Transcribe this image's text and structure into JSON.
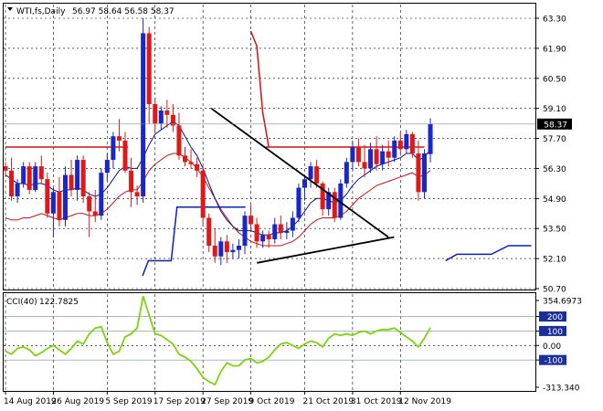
{
  "header": {
    "symbol_label": "WTI,fs,Daily",
    "ohlc_label": "56.97 58.64 56.58 58.37"
  },
  "cci_header": {
    "label": "CCI(40)",
    "value": "122.7825"
  },
  "price_tag": "58.37",
  "colors": {
    "bull": "#1a27c8",
    "bear": "#e01818",
    "cci": "#7ad60a",
    "ma_fast": "#0a1290",
    "ma_slow": "#d41010",
    "trend": "#000000",
    "pivot": "#d41010",
    "stop": "#0a20c0",
    "grid": "#000000",
    "frame": "#000000",
    "tag_bg": "#000000",
    "tag_fg": "#ffffff"
  },
  "chart_data": [
    {
      "type": "candlestick",
      "title": "WTI,fs,Daily",
      "y_ticks": [
        "63.30",
        "61.90",
        "60.50",
        "59.10",
        "57.70",
        "56.30",
        "54.90",
        "53.50",
        "52.10",
        "50.70"
      ],
      "ylim": [
        50.7,
        63.3
      ],
      "x_ticks": [
        "14 Aug 2019",
        "26 Aug 2019",
        "5 Sep 2019",
        "17 Sep 2019",
        "27 Sep 2019",
        "9 Oct 2019",
        "21 Oct 2019",
        "31 Oct 2019",
        "12 Nov 2019"
      ],
      "last_price": 58.37,
      "candles": [
        [
          56.4,
          56.6,
          55.9,
          56.2
        ],
        [
          56.2,
          56.8,
          54.8,
          55.0
        ],
        [
          55.0,
          55.8,
          54.7,
          55.6
        ],
        [
          55.6,
          56.6,
          55.4,
          56.4
        ],
        [
          56.4,
          56.6,
          55.1,
          55.3
        ],
        [
          55.3,
          56.6,
          55.2,
          56.4
        ],
        [
          56.4,
          56.9,
          55.6,
          55.8
        ],
        [
          55.8,
          56.1,
          54.0,
          54.2
        ],
        [
          54.2,
          55.4,
          53.1,
          55.2
        ],
        [
          55.2,
          55.9,
          53.6,
          53.9
        ],
        [
          53.9,
          56.4,
          53.6,
          56.0
        ],
        [
          56.0,
          56.7,
          55.0,
          55.3
        ],
        [
          55.3,
          56.9,
          54.8,
          56.7
        ],
        [
          56.7,
          56.9,
          54.7,
          55.0
        ],
        [
          55.0,
          55.2,
          53.1,
          54.3
        ],
        [
          54.3,
          55.3,
          53.8,
          54.1
        ],
        [
          54.1,
          56.3,
          53.9,
          56.1
        ],
        [
          56.1,
          57.0,
          55.7,
          56.7
        ],
        [
          56.7,
          58.0,
          56.3,
          57.8
        ],
        [
          57.8,
          58.6,
          57.1,
          57.6
        ],
        [
          57.6,
          58.0,
          56.1,
          56.2
        ],
        [
          56.2,
          56.8,
          54.5,
          55.2
        ],
        [
          55.2,
          55.5,
          54.6,
          55.0
        ],
        [
          55.0,
          63.3,
          54.7,
          62.6
        ],
        [
          62.6,
          62.9,
          58.4,
          59.3
        ],
        [
          59.3,
          59.6,
          58.0,
          58.4
        ],
        [
          58.4,
          59.2,
          58.1,
          59.0
        ],
        [
          59.0,
          59.5,
          58.2,
          58.8
        ],
        [
          58.8,
          59.3,
          58.0,
          58.3
        ],
        [
          58.3,
          58.9,
          56.7,
          56.9
        ],
        [
          56.9,
          57.3,
          56.4,
          56.6
        ],
        [
          56.6,
          57.2,
          56.3,
          56.5
        ],
        [
          56.5,
          56.8,
          55.9,
          56.2
        ],
        [
          56.2,
          56.4,
          53.6,
          54.0
        ],
        [
          54.0,
          54.2,
          52.4,
          52.7
        ],
        [
          52.7,
          53.5,
          51.9,
          52.2
        ],
        [
          52.2,
          53.1,
          51.8,
          52.9
        ],
        [
          52.9,
          53.2,
          51.9,
          52.4
        ],
        [
          52.4,
          52.8,
          52.1,
          52.5
        ],
        [
          52.5,
          53.0,
          52.1,
          52.7
        ],
        [
          52.7,
          54.3,
          52.3,
          54.1
        ],
        [
          54.1,
          54.6,
          53.4,
          53.7
        ],
        [
          53.7,
          54.0,
          52.6,
          52.9
        ],
        [
          52.9,
          53.4,
          52.6,
          53.2
        ],
        [
          53.2,
          53.4,
          52.6,
          53.0
        ],
        [
          53.0,
          54.0,
          52.8,
          53.7
        ],
        [
          53.7,
          54.1,
          53.0,
          53.3
        ],
        [
          53.3,
          53.8,
          53.0,
          53.4
        ],
        [
          53.4,
          54.3,
          53.1,
          54.0
        ],
        [
          54.0,
          55.6,
          53.8,
          55.4
        ],
        [
          55.4,
          56.0,
          54.8,
          55.8
        ],
        [
          55.8,
          56.6,
          55.4,
          56.4
        ],
        [
          56.4,
          56.7,
          55.4,
          55.6
        ],
        [
          55.6,
          55.7,
          54.1,
          54.4
        ],
        [
          54.4,
          55.4,
          54.1,
          55.2
        ],
        [
          55.2,
          55.4,
          53.8,
          54.0
        ],
        [
          54.0,
          55.8,
          53.9,
          55.6
        ],
        [
          55.6,
          56.8,
          55.4,
          56.6
        ],
        [
          56.6,
          57.6,
          56.2,
          57.3
        ],
        [
          57.3,
          57.7,
          56.4,
          56.6
        ],
        [
          56.6,
          57.4,
          55.9,
          56.3
        ],
        [
          56.3,
          57.5,
          56.1,
          57.2
        ],
        [
          57.2,
          57.8,
          56.2,
          56.5
        ],
        [
          56.5,
          57.4,
          56.2,
          57.1
        ],
        [
          57.1,
          57.6,
          56.4,
          56.8
        ],
        [
          56.8,
          57.8,
          56.6,
          57.6
        ],
        [
          57.6,
          58.0,
          56.9,
          57.2
        ],
        [
          57.2,
          58.1,
          57.0,
          57.9
        ],
        [
          57.9,
          58.0,
          56.8,
          57.0
        ],
        [
          57.0,
          57.6,
          54.8,
          55.2
        ],
        [
          55.2,
          57.2,
          54.9,
          57.0
        ],
        [
          56.97,
          58.64,
          56.58,
          58.37
        ]
      ],
      "ma_fast": [
        56.0,
        55.8,
        55.6,
        55.6,
        55.5,
        55.6,
        55.6,
        55.5,
        55.3,
        55.2,
        55.3,
        55.3,
        55.4,
        55.3,
        55.1,
        55.0,
        55.1,
        55.4,
        55.8,
        56.2,
        56.4,
        56.3,
        56.3,
        56.8,
        57.4,
        57.9,
        58.1,
        58.3,
        58.5,
        58.3,
        57.8,
        57.3,
        56.9,
        56.3,
        55.6,
        54.9,
        54.3,
        53.9,
        53.6,
        53.4,
        53.4,
        53.4,
        53.3,
        53.2,
        53.2,
        53.3,
        53.3,
        53.4,
        53.6,
        53.9,
        54.3,
        54.7,
        54.9,
        54.9,
        54.8,
        54.7,
        54.8,
        55.1,
        55.5,
        55.8,
        56.0,
        56.2,
        56.4,
        56.5,
        56.6,
        56.7,
        56.8,
        57.0,
        57.0,
        56.7,
        56.8,
        57.2
      ],
      "ma_slow": [
        54.0,
        53.9,
        53.9,
        54.0,
        54.0,
        54.1,
        54.2,
        54.1,
        54.0,
        53.9,
        54.0,
        54.1,
        54.2,
        54.2,
        54.1,
        54.1,
        54.2,
        54.4,
        54.7,
        55.0,
        55.2,
        55.3,
        55.3,
        55.7,
        56.2,
        56.5,
        56.7,
        56.9,
        57.0,
        57.0,
        56.8,
        56.6,
        56.3,
        55.9,
        55.4,
        54.9,
        54.4,
        54.0,
        53.6,
        53.3,
        53.1,
        52.9,
        52.8,
        52.7,
        52.7,
        52.7,
        52.7,
        52.8,
        52.9,
        53.1,
        53.4,
        53.7,
        53.9,
        54.0,
        54.0,
        54.0,
        54.1,
        54.3,
        54.6,
        54.9,
        55.1,
        55.3,
        55.5,
        55.6,
        55.7,
        55.8,
        55.9,
        56.0,
        56.1,
        55.9,
        56.0,
        56.2
      ],
      "pivot_segments": [
        {
          "from": 0,
          "to": 19,
          "y": 57.3
        },
        {
          "from": 36,
          "to": 66,
          "y": 57.3
        },
        {
          "from": 38,
          "to": 38,
          "y": 57.3
        }
      ],
      "pivot_drop": [
        [
          44,
          62.7
        ],
        [
          45,
          62.0
        ],
        [
          46,
          58.9
        ],
        [
          47,
          57.3
        ]
      ],
      "stop_steps": [
        [
          [
            24,
            51.3
          ],
          [
            25,
            52.0
          ],
          [
            29,
            52.0
          ],
          [
            30,
            54.5
          ],
          [
            42,
            54.5
          ]
        ],
        [
          [
            77,
            52.0
          ],
          [
            79,
            52.3
          ],
          [
            85,
            52.3
          ],
          [
            88,
            52.7
          ],
          [
            92,
            52.7
          ]
        ]
      ],
      "trendlines": [
        {
          "from": [
            36,
            59.1
          ],
          "to": [
            67,
            53.1
          ]
        },
        {
          "from": [
            44,
            51.9
          ],
          "to": [
            68,
            53.1
          ]
        }
      ]
    },
    {
      "type": "line",
      "title": "CCI(40)",
      "series_name": "CCI(40)",
      "last_value": 122.7825,
      "ylim": [
        -313.34,
        354.6973
      ],
      "y_ticks": [
        "354.6973",
        "200",
        "100",
        "0.00",
        "-100",
        "-313.340"
      ],
      "levels": [
        200,
        100,
        -100
      ],
      "values": [
        -40,
        -60,
        -20,
        -10,
        -30,
        -70,
        -50,
        -20,
        0,
        -30,
        -60,
        -20,
        30,
        10,
        80,
        120,
        130,
        20,
        -60,
        -40,
        60,
        80,
        120,
        340,
        210,
        80,
        70,
        40,
        10,
        -60,
        -80,
        -110,
        -160,
        -220,
        -250,
        -270,
        -180,
        -120,
        -140,
        -140,
        -100,
        -90,
        -120,
        -110,
        -80,
        -30,
        10,
        20,
        0,
        -20,
        10,
        30,
        20,
        -10,
        50,
        80,
        70,
        80,
        70,
        90,
        100,
        80,
        100,
        110,
        110,
        120,
        90,
        60,
        30,
        -10,
        50,
        122.78
      ]
    }
  ]
}
